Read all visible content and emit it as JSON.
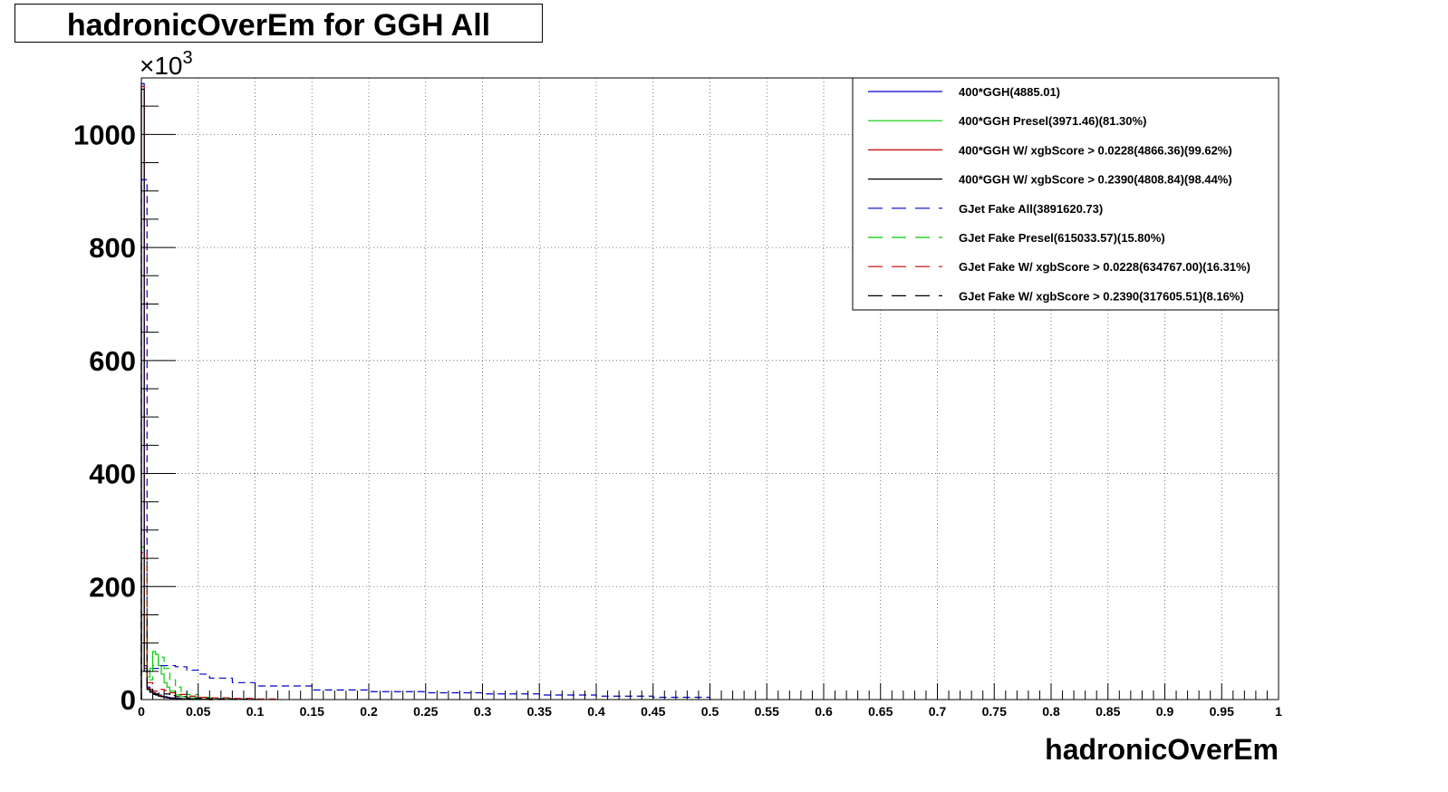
{
  "title": "hadronicOverEm for GGH All",
  "chart_data": {
    "type": "line",
    "title": "hadronicOverEm for GGH All",
    "xlabel": "hadronicOverEm",
    "ylabel": "",
    "y_multiplier_label": "×10",
    "y_multiplier_exp": "3",
    "xlim": [
      0,
      1
    ],
    "ylim": [
      0,
      1100
    ],
    "grid": true,
    "legend_position": "top-right",
    "x_tick_labels": [
      "0",
      "0.05",
      "0.1",
      "0.15",
      "0.2",
      "0.25",
      "0.3",
      "0.35",
      "0.4",
      "0.45",
      "0.5",
      "0.55",
      "0.6",
      "0.65",
      "0.7",
      "0.75",
      "0.8",
      "0.85",
      "0.9",
      "0.95",
      "1"
    ],
    "y_tick_labels": [
      "0",
      "200",
      "400",
      "600",
      "800",
      "1000"
    ],
    "bin_width": 0.0025,
    "series": [
      {
        "name": "400*GGH(4885.01)",
        "color": "#0000cc",
        "dashed": false,
        "x": [
          0,
          0.0025,
          0.005,
          0.0075,
          0.01,
          0.0125,
          0.015,
          0.0175,
          0.02,
          0.0225,
          0.025,
          0.03,
          0.035,
          0.04,
          0.05,
          0.06
        ],
        "y": [
          1090,
          60,
          22,
          15,
          12,
          10,
          8,
          6,
          5,
          4,
          3,
          2,
          1.5,
          1,
          0.5,
          0
        ]
      },
      {
        "name": "400*GGH Presel(3971.46)(81.30%)",
        "color": "#00cc00",
        "dashed": false,
        "x": [
          0,
          0.0025,
          0.005,
          0.0075,
          0.01,
          0.0125,
          0.015,
          0.0175,
          0.02,
          0.0225,
          0.025,
          0.03,
          0.035,
          0.04,
          0.05,
          0.06
        ],
        "y": [
          270,
          50,
          40,
          55,
          85,
          80,
          60,
          45,
          30,
          22,
          15,
          8,
          5,
          3,
          1,
          0
        ]
      },
      {
        "name": "400*GGH W/ xgbScore > 0.0228(4866.36)(99.62%)",
        "color": "#cc0000",
        "dashed": false,
        "x": [
          0,
          0.0025,
          0.005,
          0.0075,
          0.01,
          0.0125,
          0.015,
          0.0175,
          0.02,
          0.0225,
          0.025,
          0.03,
          0.035,
          0.04,
          0.05,
          0.06
        ],
        "y": [
          1085,
          55,
          20,
          14,
          11,
          9,
          7,
          5,
          4,
          3,
          2.5,
          1.5,
          1,
          0.8,
          0.4,
          0
        ]
      },
      {
        "name": "400*GGH W/ xgbScore > 0.2390(4808.84)(98.44%)",
        "color": "#000000",
        "dashed": false,
        "x": [
          0,
          0.0025,
          0.005,
          0.0075,
          0.01,
          0.0125,
          0.015,
          0.0175,
          0.02,
          0.0225,
          0.025,
          0.03,
          0.035,
          0.04,
          0.05,
          0.06
        ],
        "y": [
          1080,
          50,
          18,
          13,
          10,
          8,
          6,
          5,
          4,
          3,
          2,
          1.5,
          1,
          0.7,
          0.3,
          0
        ]
      },
      {
        "name": "GJet Fake All(3891620.73)",
        "color": "#0000cc",
        "dashed": true,
        "x": [
          0,
          0.005,
          0.01,
          0.015,
          0.02,
          0.03,
          0.04,
          0.05,
          0.06,
          0.08,
          0.1,
          0.15,
          0.2,
          0.25,
          0.3,
          0.35,
          0.4,
          0.45,
          0.5
        ],
        "y": [
          920,
          50,
          55,
          60,
          60,
          58,
          52,
          45,
          38,
          30,
          24,
          17,
          14,
          12,
          10,
          8,
          6,
          4,
          0
        ]
      },
      {
        "name": "GJet Fake Presel(615033.57)(15.80%)",
        "color": "#00cc00",
        "dashed": true,
        "x": [
          0,
          0.005,
          0.01,
          0.015,
          0.02,
          0.025,
          0.03,
          0.035,
          0.04,
          0.05,
          0.06,
          0.08
        ],
        "y": [
          240,
          35,
          60,
          75,
          55,
          35,
          22,
          14,
          9,
          4,
          1.5,
          0
        ]
      },
      {
        "name": "GJet Fake W/ xgbScore > 0.0228(634767.00)(16.31%)",
        "color": "#cc0000",
        "dashed": true,
        "x": [
          0,
          0.005,
          0.01,
          0.015,
          0.02,
          0.025,
          0.03,
          0.04,
          0.05,
          0.06,
          0.08,
          0.1,
          0.12
        ],
        "y": [
          260,
          30,
          15,
          18,
          16,
          12,
          9,
          6,
          4,
          3,
          2,
          1,
          0
        ]
      },
      {
        "name": "GJet Fake W/ xgbScore > 0.2390(317605.51)(8.16%)",
        "color": "#000000",
        "dashed": true,
        "x": [
          0,
          0.005,
          0.01,
          0.015,
          0.02,
          0.025,
          0.03,
          0.04,
          0.05,
          0.06,
          0.08,
          0.1
        ],
        "y": [
          150,
          18,
          9,
          11,
          10,
          7,
          5,
          3,
          2,
          1.5,
          0.8,
          0
        ]
      }
    ]
  }
}
